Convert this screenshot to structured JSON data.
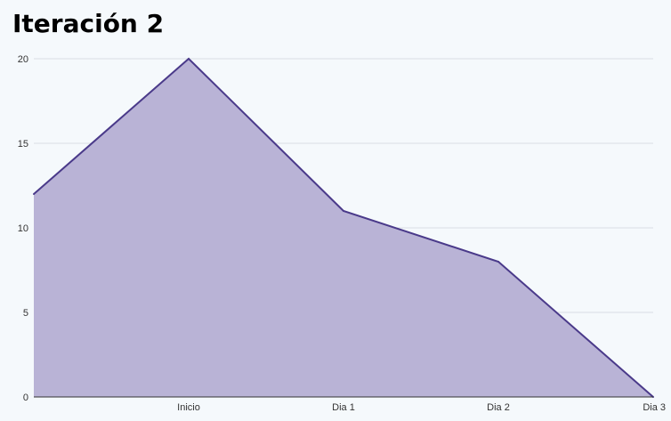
{
  "chart_data": {
    "type": "area",
    "title": "Iteración 2",
    "xlabel": "",
    "ylabel": "",
    "categories": [
      "",
      "Inicio",
      "Dia 1",
      "Dia 2",
      "Dia 3"
    ],
    "series": [
      {
        "values": [
          12,
          20,
          11,
          8,
          0
        ]
      }
    ],
    "ylim": [
      0,
      20
    ],
    "yticks": [
      0,
      5,
      10,
      15,
      20
    ],
    "grid": true,
    "legend": "none",
    "colors": {
      "line": "#4a3a8a",
      "fill": "#b9b3d6",
      "grid": "#d9dde3",
      "axis": "#333333"
    }
  }
}
